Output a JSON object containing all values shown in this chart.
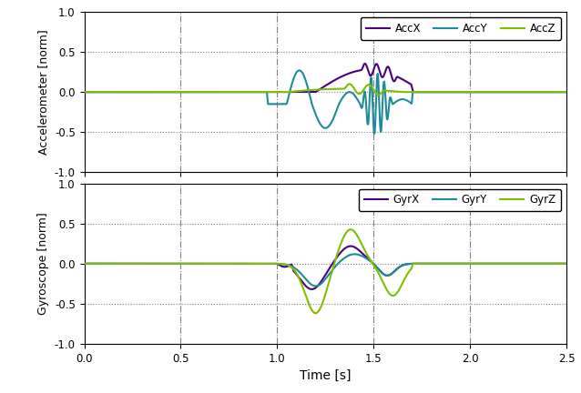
{
  "xlim": [
    0.0,
    2.5
  ],
  "ylim": [
    -1.0,
    1.0
  ],
  "xlabel": "Time [s]",
  "ylabel_top": "Accelerometer [norm]",
  "ylabel_bot": "Gyroscope [norm]",
  "xticks": [
    0.0,
    0.5,
    1.0,
    1.5,
    2.0,
    2.5
  ],
  "yticks": [
    -1.0,
    -0.5,
    0.0,
    0.5,
    1.0
  ],
  "color_x": "#4B0082",
  "color_y": "#1E8B9B",
  "color_z": "#7FBF00",
  "legend_acc": [
    "AccX",
    "AccY",
    "AccZ"
  ],
  "legend_gyr": [
    "GyrX",
    "GyrY",
    "GyrZ"
  ],
  "linewidth": 1.5,
  "vline_positions": [
    0.5,
    1.0,
    1.5,
    2.0
  ]
}
